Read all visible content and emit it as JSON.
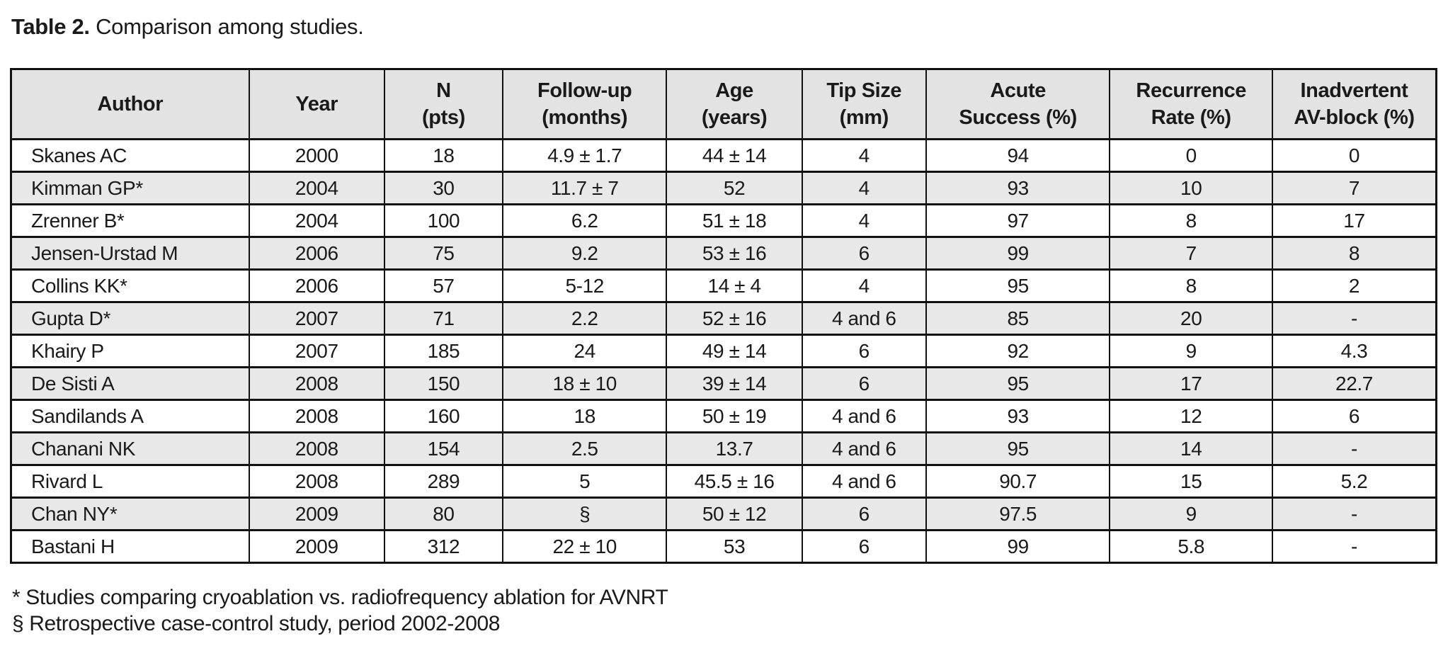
{
  "title": {
    "label": "Table 2.",
    "text": "Comparison among studies."
  },
  "table": {
    "columns": [
      "Author",
      "Year",
      "N\n(pts)",
      "Follow-up\n(months)",
      "Age\n(years)",
      "Tip Size\n(mm)",
      "Acute\nSuccess (%)",
      "Recurrence\nRate (%)",
      "Inadvertent\nAV-block (%)"
    ],
    "rows": [
      [
        "Skanes AC",
        "2000",
        "18",
        "4.9 ± 1.7",
        "44 ± 14",
        "4",
        "94",
        "0",
        "0"
      ],
      [
        "Kimman GP*",
        "2004",
        "30",
        "11.7 ± 7",
        "52",
        "4",
        "93",
        "10",
        "7"
      ],
      [
        "Zrenner B*",
        "2004",
        "100",
        "6.2",
        "51 ± 18",
        "4",
        "97",
        "8",
        "17"
      ],
      [
        "Jensen-Urstad M",
        "2006",
        "75",
        "9.2",
        "53 ± 16",
        "6",
        "99",
        "7",
        "8"
      ],
      [
        "Collins KK*",
        "2006",
        "57",
        "5-12",
        "14 ± 4",
        "4",
        "95",
        "8",
        "2"
      ],
      [
        "Gupta D*",
        "2007",
        "71",
        "2.2",
        "52 ± 16",
        "4 and 6",
        "85",
        "20",
        "-"
      ],
      [
        "Khairy P",
        "2007",
        "185",
        "24",
        "49 ± 14",
        "6",
        "92",
        "9",
        "4.3"
      ],
      [
        "De Sisti A",
        "2008",
        "150",
        "18 ± 10",
        "39 ± 14",
        "6",
        "95",
        "17",
        "22.7"
      ],
      [
        "Sandilands A",
        "2008",
        "160",
        "18",
        "50 ± 19",
        "4 and 6",
        "93",
        "12",
        "6"
      ],
      [
        "Chanani NK",
        "2008",
        "154",
        "2.5",
        "13.7",
        "4 and 6",
        "95",
        "14",
        "-"
      ],
      [
        "Rivard L",
        "2008",
        "289",
        "5",
        "45.5 ± 16",
        "4 and 6",
        "90.7",
        "15",
        "5.2"
      ],
      [
        "Chan NY*",
        "2009",
        "80",
        "§",
        "50 ± 12",
        "6",
        "97.5",
        "9",
        "-"
      ],
      [
        "Bastani H",
        "2009",
        "312",
        "22 ± 10",
        "53",
        "6",
        "99",
        "5.8",
        "-"
      ]
    ]
  },
  "footnotes": [
    "* Studies comparing cryoablation vs. radiofrequency ablation for AVNRT",
    "§ Retrospective case-control study, period 2002-2008"
  ],
  "colors": {
    "header_bg": "#e3e3e3",
    "stripe_bg": "#e8e8e8",
    "border": "#111111",
    "text": "#1a1a1a"
  }
}
